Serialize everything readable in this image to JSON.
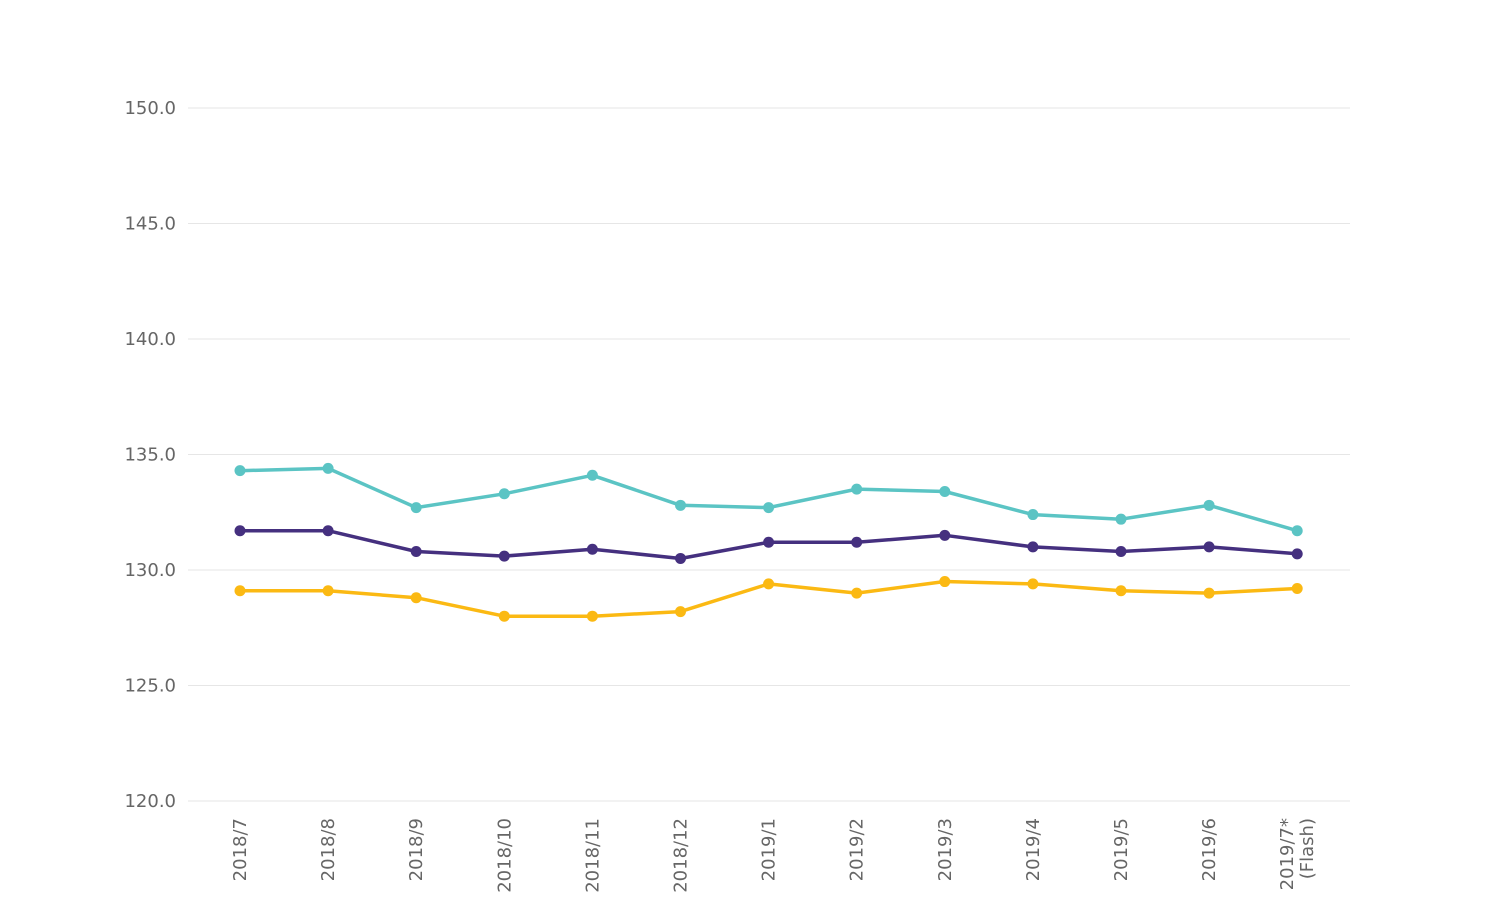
{
  "chart_data": {
    "type": "line",
    "title": "",
    "xlabel": "",
    "ylabel": "",
    "ylim": [
      120,
      150
    ],
    "yticks": [
      "150.0",
      "145.0",
      "140.0",
      "135.0",
      "130.0",
      "125.0",
      "120.0"
    ],
    "ytick_values": [
      150,
      145,
      140,
      135,
      130,
      125,
      120
    ],
    "categories": [
      [
        "2018/7"
      ],
      [
        "2018/8"
      ],
      [
        "2018/9"
      ],
      [
        "2018/10"
      ],
      [
        "2018/11"
      ],
      [
        "2018/12"
      ],
      [
        "2019/1"
      ],
      [
        "2019/2"
      ],
      [
        "2019/3"
      ],
      [
        "2019/4"
      ],
      [
        "2019/5"
      ],
      [
        "2019/6"
      ],
      [
        "2019/7*",
        "(Flash)"
      ]
    ],
    "series": [
      {
        "name": "teal-series",
        "color": "#5bc4c4",
        "values": [
          134.3,
          134.4,
          132.7,
          133.3,
          134.1,
          132.8,
          132.7,
          133.5,
          133.4,
          132.4,
          132.2,
          132.8,
          131.7
        ]
      },
      {
        "name": "purple-series",
        "color": "#45307f",
        "values": [
          131.7,
          131.7,
          130.8,
          130.6,
          130.9,
          130.5,
          131.2,
          131.2,
          131.5,
          131.0,
          130.8,
          131.0,
          130.7
        ]
      },
      {
        "name": "yellow-series",
        "color": "#fbb913",
        "values": [
          129.1,
          129.1,
          128.8,
          128.0,
          128.0,
          128.2,
          129.4,
          129.0,
          129.5,
          129.4,
          129.1,
          129.0,
          129.2
        ]
      }
    ],
    "grid": true,
    "legend": "none"
  }
}
